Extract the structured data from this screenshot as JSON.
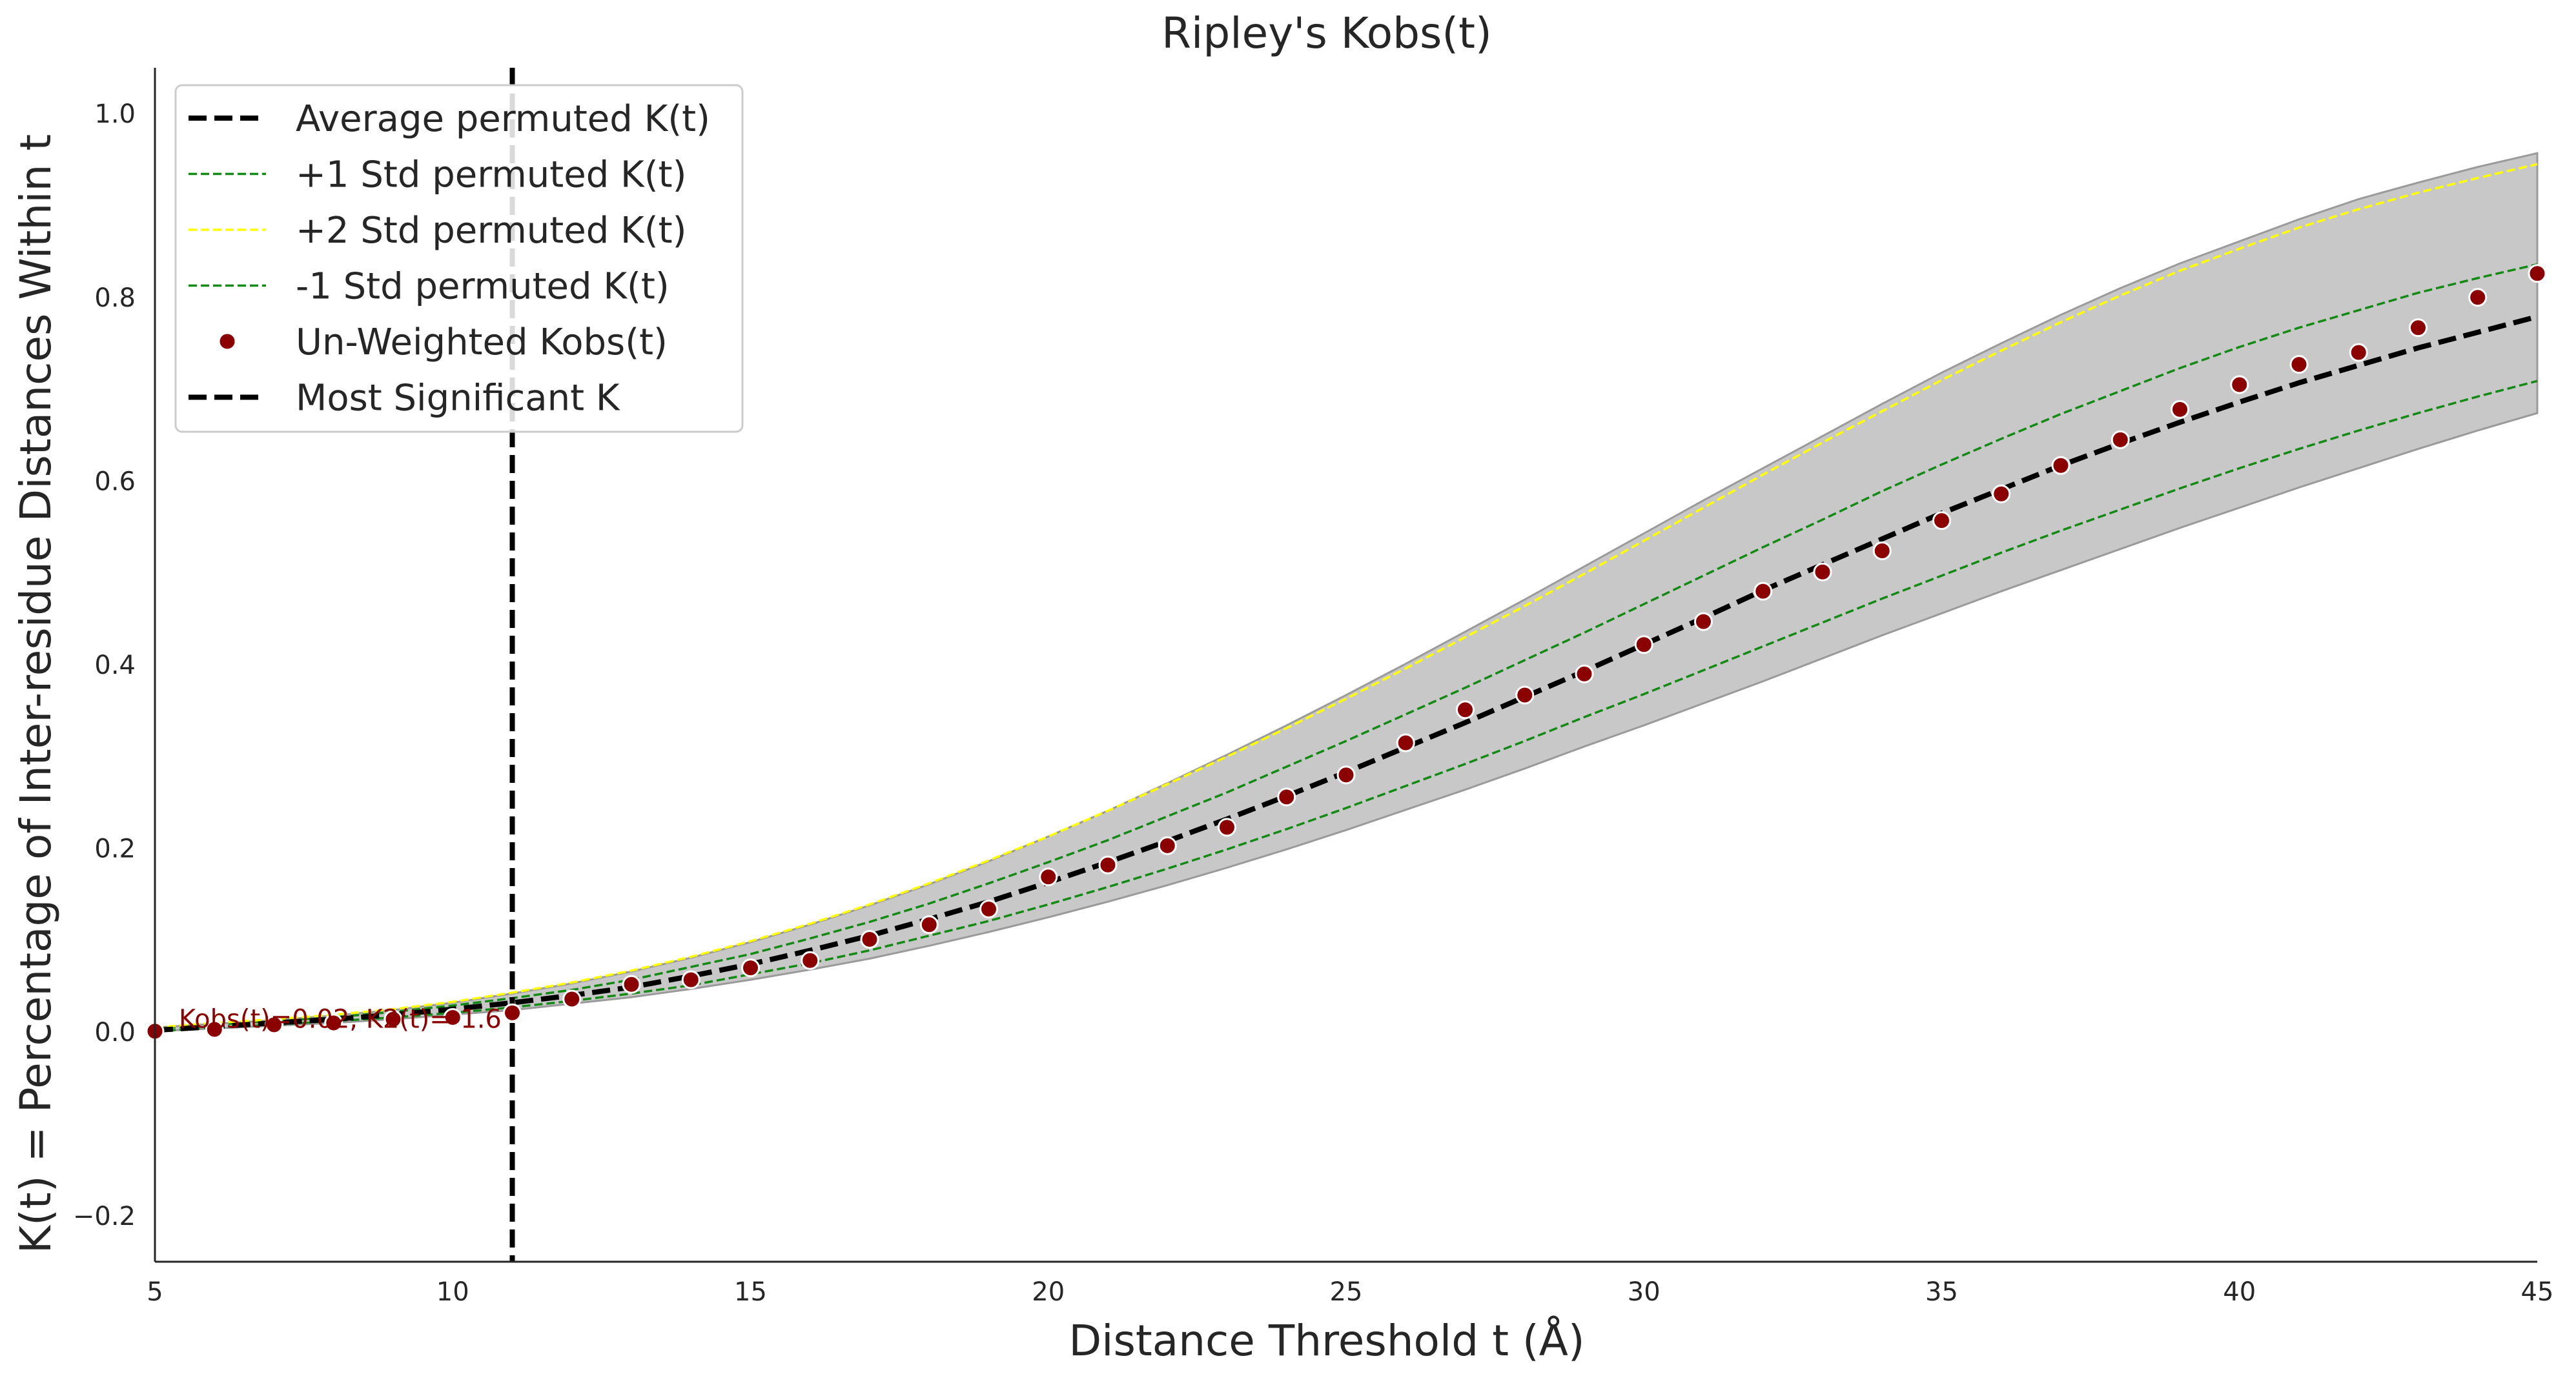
{
  "chart_data": {
    "type": "line",
    "title": "Ripley's Kobs(t)",
    "xlabel": "Distance Threshold t (Å)",
    "ylabel": "K(t) = Percentage of Inter-residue Distances Within t",
    "xlim": [
      5,
      45
    ],
    "ylim": [
      -0.25,
      1.05
    ],
    "xticks": [
      5,
      10,
      15,
      20,
      25,
      30,
      35,
      40,
      45
    ],
    "xtick_labels": [
      "5",
      "10",
      "15",
      "20",
      "25",
      "30",
      "35",
      "40",
      "45"
    ],
    "yticks": [
      -0.2,
      0.0,
      0.2,
      0.4,
      0.6,
      0.8,
      1.0
    ],
    "ytick_labels": [
      "−0.2",
      "0.0",
      "0.2",
      "0.4",
      "0.6",
      "0.8",
      "1.0"
    ],
    "grid": false,
    "legend_position": "top-left",
    "x": [
      5,
      6,
      7,
      8,
      9,
      10,
      11,
      12,
      13,
      14,
      15,
      16,
      17,
      18,
      19,
      20,
      21,
      22,
      23,
      24,
      25,
      26,
      27,
      28,
      29,
      30,
      31,
      32,
      33,
      34,
      35,
      36,
      37,
      38,
      39,
      40,
      41,
      42,
      43,
      44,
      45
    ],
    "band": {
      "name": "",
      "color": "#c8c8c8",
      "upper": [
        0.005,
        0.009,
        0.013,
        0.018,
        0.024,
        0.032,
        0.042,
        0.053,
        0.066,
        0.081,
        0.098,
        0.117,
        0.138,
        0.161,
        0.186,
        0.213,
        0.241,
        0.271,
        0.302,
        0.334,
        0.367,
        0.401,
        0.436,
        0.471,
        0.507,
        0.543,
        0.579,
        0.614,
        0.649,
        0.684,
        0.718,
        0.75,
        0.781,
        0.81,
        0.837,
        0.861,
        0.885,
        0.907,
        0.925,
        0.942,
        0.957
      ],
      "lower": [
        0.001,
        0.004,
        0.007,
        0.01,
        0.014,
        0.019,
        0.024,
        0.031,
        0.038,
        0.047,
        0.057,
        0.068,
        0.08,
        0.094,
        0.109,
        0.125,
        0.142,
        0.16,
        0.179,
        0.199,
        0.22,
        0.242,
        0.264,
        0.287,
        0.311,
        0.334,
        0.358,
        0.382,
        0.407,
        0.432,
        0.456,
        0.48,
        0.503,
        0.526,
        0.549,
        0.571,
        0.593,
        0.614,
        0.635,
        0.655,
        0.674
      ]
    },
    "series": [
      {
        "name": "Average permuted K(t)",
        "color": "#000000",
        "style": "dashed-thick",
        "values": [
          0.002,
          0.006,
          0.01,
          0.014,
          0.019,
          0.025,
          0.032,
          0.04,
          0.049,
          0.061,
          0.074,
          0.089,
          0.105,
          0.123,
          0.142,
          0.163,
          0.185,
          0.208,
          0.232,
          0.257,
          0.283,
          0.31,
          0.337,
          0.365,
          0.393,
          0.422,
          0.451,
          0.481,
          0.509,
          0.537,
          0.565,
          0.591,
          0.617,
          0.641,
          0.664,
          0.686,
          0.707,
          0.726,
          0.745,
          0.762,
          0.779
        ]
      },
      {
        "name": "+1 Std permuted K(t)",
        "color": "#138a13",
        "style": "dashed-thin",
        "values": [
          0.004,
          0.008,
          0.012,
          0.016,
          0.022,
          0.029,
          0.037,
          0.046,
          0.057,
          0.071,
          0.085,
          0.102,
          0.12,
          0.14,
          0.162,
          0.185,
          0.209,
          0.235,
          0.261,
          0.289,
          0.317,
          0.346,
          0.375,
          0.405,
          0.435,
          0.466,
          0.497,
          0.528,
          0.558,
          0.589,
          0.618,
          0.646,
          0.673,
          0.698,
          0.723,
          0.746,
          0.767,
          0.786,
          0.805,
          0.821,
          0.836
        ]
      },
      {
        "name": "+2 Std permuted K(t)",
        "color": "#ffff00",
        "style": "dashed-thin",
        "values": [
          0.005,
          0.01,
          0.014,
          0.019,
          0.025,
          0.033,
          0.043,
          0.054,
          0.067,
          0.082,
          0.099,
          0.118,
          0.139,
          0.162,
          0.187,
          0.213,
          0.241,
          0.27,
          0.3,
          0.331,
          0.363,
          0.396,
          0.43,
          0.464,
          0.499,
          0.535,
          0.571,
          0.607,
          0.642,
          0.676,
          0.71,
          0.742,
          0.773,
          0.802,
          0.829,
          0.853,
          0.876,
          0.896,
          0.914,
          0.93,
          0.945
        ]
      },
      {
        "name": "-1 Std permuted K(t)",
        "color": "#138a13",
        "style": "dashed-thin",
        "values": [
          0.001,
          0.005,
          0.008,
          0.012,
          0.016,
          0.021,
          0.027,
          0.034,
          0.042,
          0.051,
          0.063,
          0.075,
          0.089,
          0.105,
          0.121,
          0.139,
          0.158,
          0.178,
          0.199,
          0.221,
          0.244,
          0.268,
          0.292,
          0.317,
          0.343,
          0.368,
          0.394,
          0.42,
          0.446,
          0.472,
          0.497,
          0.522,
          0.546,
          0.569,
          0.592,
          0.614,
          0.635,
          0.655,
          0.674,
          0.692,
          0.709
        ]
      }
    ],
    "points": {
      "name": "Un-Weighted Kobs(t)",
      "color": "#8b0000",
      "values": [
        0.001,
        0.003,
        0.008,
        0.01,
        0.014,
        0.016,
        0.021,
        0.036,
        0.052,
        0.057,
        0.07,
        0.078,
        0.101,
        0.117,
        0.134,
        0.169,
        0.182,
        0.203,
        0.223,
        0.256,
        0.28,
        0.315,
        0.351,
        0.367,
        0.39,
        0.422,
        0.447,
        0.48,
        0.501,
        0.524,
        0.557,
        0.586,
        0.617,
        0.645,
        0.678,
        0.705,
        0.727,
        0.74,
        0.767,
        0.8,
        0.826
      ]
    },
    "vline": {
      "name": "Most Significant K",
      "x": 11,
      "color": "#000000"
    },
    "annotation": {
      "text": "Kobs(t)=0.02, K2(t)=-1.6",
      "x": 5.4,
      "y": 0.002,
      "color": "#8b0000"
    }
  }
}
